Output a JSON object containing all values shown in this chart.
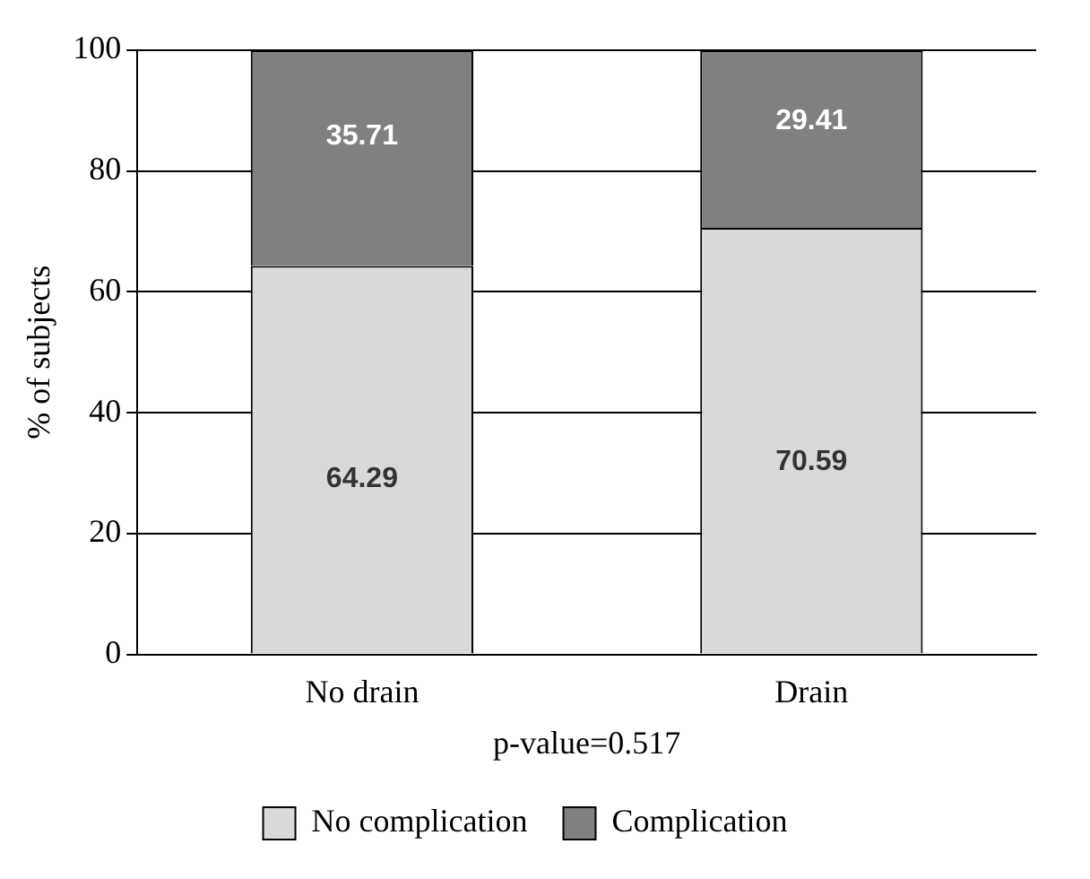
{
  "chart_data": {
    "type": "bar",
    "stacked": true,
    "categories": [
      "No drain",
      "Drain"
    ],
    "series": [
      {
        "name": "No complication",
        "color": "#d9d9d9",
        "values": [
          64.29,
          70.59
        ]
      },
      {
        "name": "Complication",
        "color": "#808080",
        "values": [
          35.71,
          29.41
        ]
      }
    ],
    "ylim": [
      0,
      100
    ],
    "yticks": [
      0,
      20,
      40,
      60,
      80,
      100
    ],
    "ylabel": "% of subjects",
    "xlabel": "p-value=0.517",
    "grid": "y",
    "legend": "bottom",
    "data_labels": true
  }
}
